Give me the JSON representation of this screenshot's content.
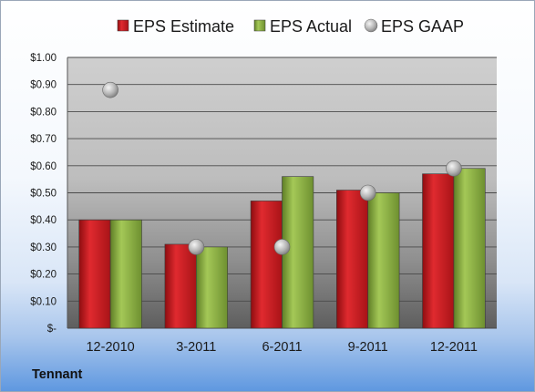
{
  "chart_data": {
    "type": "bar",
    "categories": [
      "12-2010",
      "3-2011",
      "6-2011",
      "9-2011",
      "12-2011"
    ],
    "series": [
      {
        "name": "EPS Estimate",
        "kind": "bar",
        "color": "#c4161c",
        "values": [
          0.4,
          0.31,
          0.47,
          0.51,
          0.57
        ]
      },
      {
        "name": "EPS Actual",
        "kind": "bar",
        "color": "#8bb23e",
        "values": [
          0.4,
          0.3,
          0.56,
          0.5,
          0.59
        ]
      },
      {
        "name": "EPS GAAP",
        "kind": "marker",
        "color": "#b5b5b5",
        "values": [
          0.88,
          0.3,
          0.3,
          0.5,
          0.59
        ]
      }
    ],
    "ylim": [
      0,
      1.0
    ],
    "yticks": [
      "$-",
      "$0.10",
      "$0.20",
      "$0.30",
      "$0.40",
      "$0.50",
      "$0.60",
      "$0.70",
      "$0.80",
      "$0.90",
      "$1.00"
    ],
    "grid": true,
    "legend_position": "top"
  },
  "footer": {
    "company": "Tennant"
  }
}
